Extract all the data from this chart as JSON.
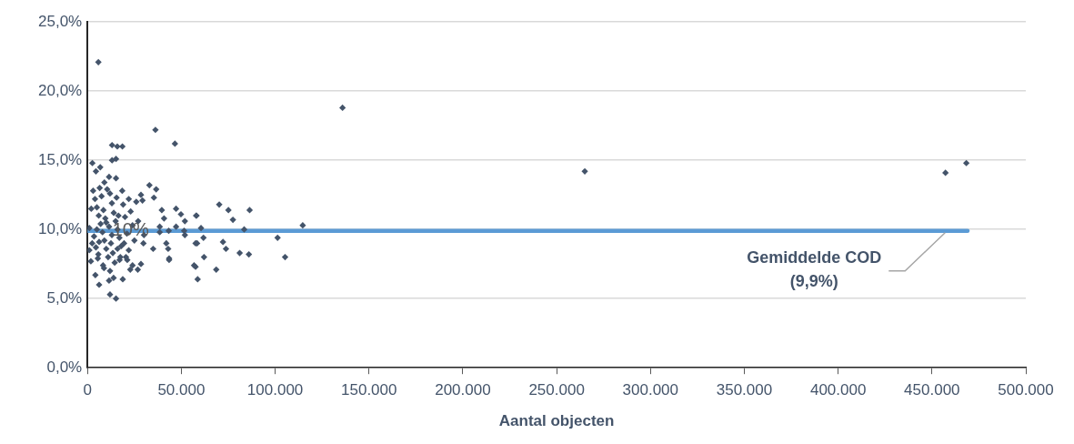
{
  "chart_data": {
    "type": "scatter",
    "xlabel": "Aantal objecten",
    "xlim": [
      0,
      500000
    ],
    "ylim": [
      0,
      25
    ],
    "xticks": [
      0,
      {
        "value": 50000,
        "label": "50.000"
      },
      {
        "value": 100000,
        "label": "100.000"
      },
      {
        "value": 150000,
        "label": "150.000"
      },
      {
        "value": 200000,
        "label": "200.000"
      },
      {
        "value": 250000,
        "label": "250.000"
      },
      {
        "value": 300000,
        "label": "300.000"
      },
      {
        "value": 350000,
        "label": "350.000"
      },
      {
        "value": 400000,
        "label": "400.000"
      },
      {
        "value": 450000,
        "label": "450.000"
      },
      {
        "value": 500000,
        "label": "500.000"
      }
    ],
    "yticks": [
      {
        "value": 0,
        "label": "0,0%"
      },
      {
        "value": 5,
        "label": "5,0%"
      },
      {
        "value": 10,
        "label": "10,0%"
      },
      {
        "value": 15,
        "label": "15,0%"
      },
      {
        "value": 20,
        "label": "20,0%"
      },
      {
        "value": 25,
        "label": "25,0%"
      }
    ],
    "grid": "y",
    "legend": false,
    "series": [
      {
        "color": "#44546a",
        "marker": "diamond",
        "x": [
          36200,
          46600,
          13100,
          15900,
          18600,
          13100,
          15200,
          2600,
          6800,
          4500,
          11500,
          15200,
          33000,
          36600,
          35400,
          28500,
          29300,
          39600,
          40800,
          47200,
          49800,
          51900,
          47200,
          38500,
          38500,
          51900,
          43300,
          57900,
          42000,
          43000,
          43500,
          43500,
          35000,
          30100,
          29800,
          57600,
          56800,
          57600,
          58700,
          1000,
          1800,
          1000,
          4200,
          6200,
          12000,
          15200,
          11500,
          13900,
          18800,
          26800,
          28500,
          22800,
          21200,
          17100,
          8300,
          5800,
          3000,
          4000,
          5000,
          6000,
          7000,
          8000,
          9000,
          10000,
          11000,
          12000,
          13000,
          14000,
          15000,
          16000,
          17000,
          18000,
          19000,
          20000,
          21000,
          22000,
          23000,
          24000,
          25000,
          26000,
          27000,
          3500,
          4500,
          5500,
          6500,
          7500,
          8500,
          9500,
          10500,
          11500,
          12500,
          13500,
          14500,
          15500,
          16500,
          17500,
          18500,
          19500,
          20500,
          2000,
          2500,
          6200,
          8800,
          12000,
          9000,
          5000,
          10000,
          13000,
          16000,
          22000,
          24000,
          51500,
          58100,
          60500,
          58400,
          61800,
          62100,
          68600,
          70200,
          75100,
          77500,
          86400,
          83500,
          72200,
          73800,
          81100,
          86000,
          101300,
          105300,
          114700,
          135900,
          5800,
          265000,
          457200,
          468300
        ],
        "values": [
          17.2,
          16.2,
          16.1,
          16.0,
          16.0,
          15.0,
          15.1,
          14.8,
          14.5,
          14.2,
          13.8,
          13.7,
          13.2,
          12.9,
          12.3,
          12.5,
          12.1,
          11.4,
          10.8,
          11.5,
          11.1,
          10.6,
          10.2,
          10.2,
          9.8,
          9.6,
          9.9,
          11.0,
          9.0,
          8.6,
          7.9,
          7.8,
          8.6,
          9.6,
          9.0,
          9.0,
          7.4,
          7.3,
          6.4,
          10.1,
          7.7,
          8.5,
          6.7,
          6.0,
          5.3,
          5.0,
          6.3,
          6.5,
          6.4,
          7.1,
          7.5,
          7.1,
          7.8,
          7.8,
          7.4,
          8.2,
          12.8,
          12.2,
          11.6,
          11.0,
          10.4,
          9.8,
          9.2,
          8.6,
          8.0,
          12.6,
          11.9,
          11.2,
          10.6,
          10.0,
          9.4,
          8.8,
          11.8,
          10.9,
          9.7,
          8.5,
          11.3,
          10.3,
          9.2,
          12.0,
          10.6,
          9.5,
          8.7,
          7.9,
          13.0,
          12.4,
          11.4,
          10.8,
          12.9,
          10.2,
          9.0,
          8.3,
          7.6,
          12.3,
          11.0,
          8.0,
          12.8,
          9.0,
          8.0,
          11.5,
          9.0,
          9.1,
          7.2,
          7.0,
          13.4,
          10.0,
          10.5,
          9.6,
          8.6,
          12.2,
          7.4,
          9.9,
          11.0,
          10.1,
          9.0,
          9.4,
          8.0,
          7.1,
          11.8,
          11.4,
          10.7,
          11.4,
          10.0,
          9.1,
          8.6,
          8.3,
          8.2,
          9.4,
          8.0,
          10.3,
          18.8,
          22.1,
          14.2,
          14.1,
          14.8
        ]
      },
      {
        "type": "line",
        "color": "#5b9bd5",
        "x": [
          0,
          469000
        ],
        "values": [
          9.9,
          9.9
        ]
      }
    ],
    "annotations": [
      {
        "text": "Gemiddelde COD\n(9,9%)",
        "x": 457000,
        "y": 9.9
      },
      {
        "text": "10%",
        "x": 23000,
        "y": 9.9
      }
    ]
  }
}
